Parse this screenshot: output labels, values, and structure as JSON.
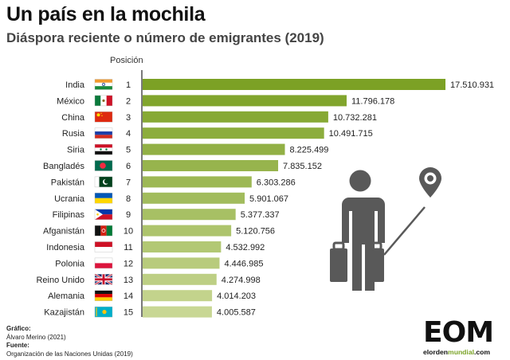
{
  "header": {
    "title": "Un país en la mochila",
    "subtitle": "Diáspora reciente o número de emigrantes (2019)",
    "position_label": "Posición"
  },
  "chart_data": {
    "type": "bar",
    "orientation": "horizontal",
    "title": "Un país en la mochila",
    "subtitle": "Diáspora reciente o número de emigrantes (2019)",
    "categories": [
      "India",
      "México",
      "China",
      "Rusia",
      "Siria",
      "Bangladés",
      "Pakistán",
      "Ucrania",
      "Filipinas",
      "Afganistán",
      "Indonesia",
      "Polonia",
      "Reino Unido",
      "Alemania",
      "Kazajistán"
    ],
    "positions": [
      1,
      2,
      3,
      4,
      5,
      6,
      7,
      8,
      9,
      10,
      11,
      12,
      13,
      14,
      15
    ],
    "values": [
      17510931,
      11796178,
      10732281,
      10491715,
      8225499,
      7835152,
      6303286,
      5901067,
      5377337,
      5120756,
      4532992,
      4446985,
      4274998,
      4014203,
      4005587
    ],
    "value_labels": [
      "17.510.931",
      "11.796.178",
      "10.732.281",
      "10.491.715",
      "8.225.499",
      "7.835.152",
      "6.303.286",
      "5.901.067",
      "5.377.337",
      "5.120.756",
      "4.532.992",
      "4.446.985",
      "4.274.998",
      "4.014.203",
      "4.005.587"
    ],
    "flags": [
      "india-flag",
      "mexico-flag",
      "china-flag",
      "russia-flag",
      "syria-flag",
      "bangladesh-flag",
      "pakistan-flag",
      "ukraine-flag",
      "philippines-flag",
      "afghanistan-flag",
      "indonesia-flag",
      "poland-flag",
      "uk-flag",
      "germany-flag",
      "kazakhstan-flag"
    ],
    "bar_color_start": "#7ca125",
    "bar_color_end": "#c8d794",
    "xlim": [
      0,
      17510931
    ],
    "grid": false,
    "legend": "none"
  },
  "illustration": {
    "icon": "emigrant-with-suitcases-icon",
    "pin_icon": "location-pin-icon",
    "color": "#595959"
  },
  "credits": {
    "graphic_label": "Gráfico:",
    "graphic_author": "Álvaro Merino (2021)",
    "source_label": "Fuente:",
    "source_text": "Organización de las Naciones Unidas (2019)"
  },
  "logo": {
    "mark": "EOM",
    "url_prefix": "elorden",
    "url_highlight": "mundial",
    "url_suffix": ".com"
  }
}
